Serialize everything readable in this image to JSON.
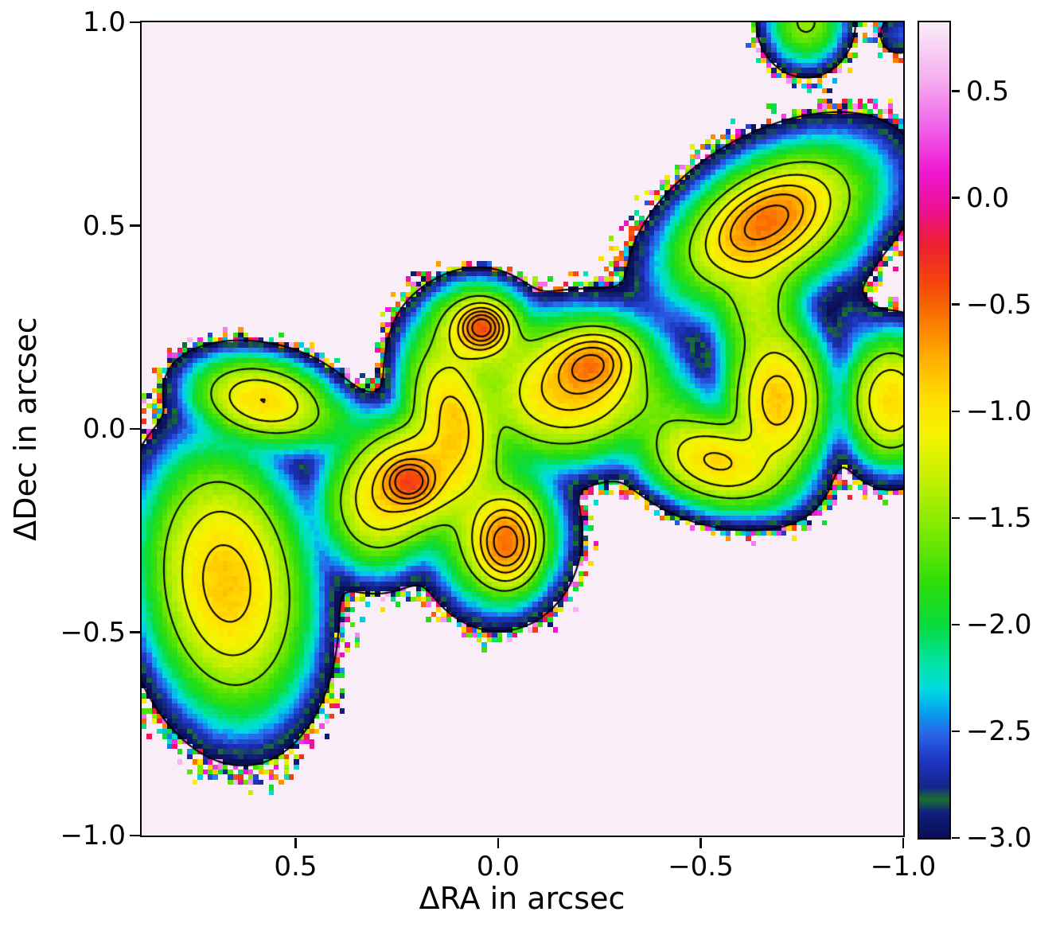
{
  "chart_data": {
    "type": "heatmap",
    "title": "",
    "xlabel": "ΔRA in arcsec",
    "ylabel": "ΔDec in arcsec",
    "x_range": [
      0.88,
      -1.0
    ],
    "y_range": [
      1.0,
      -1.0
    ],
    "grid": {
      "nx": 150,
      "ny": 160
    },
    "x_ticks": [
      {
        "value": 0.5,
        "label": "0.5"
      },
      {
        "value": 0.0,
        "label": "0.0"
      },
      {
        "value": -0.5,
        "label": "−0.5"
      },
      {
        "value": -1.0,
        "label": "−1.0"
      }
    ],
    "y_ticks": [
      {
        "value": 1.0,
        "label": "1.0"
      },
      {
        "value": 0.5,
        "label": "0.5"
      },
      {
        "value": 0.0,
        "label": "0.0"
      },
      {
        "value": -0.5,
        "label": "−0.5"
      },
      {
        "value": -1.0,
        "label": "−1.0"
      }
    ],
    "colorbar": {
      "vmin": -3.0,
      "vmax": 0.823,
      "ticks": [
        {
          "value": 0.5,
          "label": "0.5"
        },
        {
          "value": 0.0,
          "label": "0.0"
        },
        {
          "value": -0.5,
          "label": "−0.5"
        },
        {
          "value": -1.0,
          "label": "−1.0"
        },
        {
          "value": -1.5,
          "label": "−1.5"
        },
        {
          "value": -2.0,
          "label": "−2.0"
        },
        {
          "value": -2.5,
          "label": "−2.5"
        },
        {
          "value": -3.0,
          "label": "−3.0"
        }
      ]
    },
    "colormap_stops": [
      [
        -3.0,
        "#0a1056"
      ],
      [
        -2.94,
        "#0d1768"
      ],
      [
        -2.88,
        "#122180"
      ],
      [
        -2.82,
        "#1a7030"
      ],
      [
        -2.76,
        "#16268e"
      ],
      [
        -2.64,
        "#1d36c2"
      ],
      [
        -2.52,
        "#2b62e8"
      ],
      [
        -2.4,
        "#06a8f0"
      ],
      [
        -2.3,
        "#00dce0"
      ],
      [
        -2.16,
        "#00e49a"
      ],
      [
        -2.0,
        "#08dc3c"
      ],
      [
        -1.8,
        "#30de0a"
      ],
      [
        -1.56,
        "#7eea00"
      ],
      [
        -1.32,
        "#c4f000"
      ],
      [
        -1.1,
        "#f6f400"
      ],
      [
        -0.94,
        "#ffde00"
      ],
      [
        -0.76,
        "#ffb200"
      ],
      [
        -0.58,
        "#fb7c00"
      ],
      [
        -0.4,
        "#f6480c"
      ],
      [
        -0.22,
        "#ee2030"
      ],
      [
        -0.06,
        "#ec1090"
      ],
      [
        0.12,
        "#ee18d4"
      ],
      [
        0.34,
        "#f266ea"
      ],
      [
        0.56,
        "#f6b0f0"
      ],
      [
        0.823,
        "#f9eef8"
      ]
    ],
    "mask": {
      "threshold": -3.1,
      "background": "#f9eef8"
    },
    "noise": {
      "seed": 7,
      "texture_amp": 0.09,
      "speckle_bands": [
        [
          -3.4,
          0.8
        ],
        [
          -3.65,
          0.45
        ],
        [
          -3.98,
          0.15
        ]
      ],
      "speckle_value_range": [
        -3.0,
        0.6
      ]
    },
    "contour_levels": [
      -3.1,
      -1.55,
      -1.2,
      -0.95,
      -0.78,
      -0.63,
      -0.5
    ],
    "blobs": [
      {
        "ra": 0.67,
        "dec": -0.38,
        "amp": -0.85,
        "sx": 0.085,
        "sy": 0.14,
        "rot": -8
      },
      {
        "ra": 0.58,
        "dec": 0.07,
        "amp": -0.95,
        "sx": 0.078,
        "sy": 0.045,
        "rot": 12
      },
      {
        "ra": 0.42,
        "dec": 0.01,
        "amp": -2.1,
        "sx": 0.07,
        "sy": 0.04,
        "rot": 0
      },
      {
        "ra": 0.22,
        "dec": -0.13,
        "amp": -0.52,
        "sx": 0.03,
        "sy": 0.027,
        "rot": 0
      },
      {
        "ra": 0.21,
        "dec": -0.12,
        "amp": -0.8,
        "sx": 0.08,
        "sy": 0.065,
        "rot": -20
      },
      {
        "ra": 0.11,
        "dec": 0.03,
        "amp": -0.9,
        "sx": 0.05,
        "sy": 0.095,
        "rot": -15
      },
      {
        "ra": 0.3,
        "dec": -0.2,
        "amp": -1.25,
        "sx": 0.06,
        "sy": 0.07,
        "rot": 0
      },
      {
        "ra": 0.04,
        "dec": 0.25,
        "amp": -0.52,
        "sx": 0.028,
        "sy": 0.026,
        "rot": 0
      },
      {
        "ra": 0.05,
        "dec": 0.24,
        "amp": -0.95,
        "sx": 0.055,
        "sy": 0.05,
        "rot": 0
      },
      {
        "ra": -0.02,
        "dec": -0.28,
        "amp": -0.62,
        "sx": 0.038,
        "sy": 0.05,
        "rot": 0
      },
      {
        "ra": 0.0,
        "dec": -0.26,
        "amp": -1.2,
        "sx": 0.07,
        "sy": 0.08,
        "rot": 0
      },
      {
        "ra": -0.23,
        "dec": 0.16,
        "amp": -0.72,
        "sx": 0.05,
        "sy": 0.038,
        "rot": -15
      },
      {
        "ra": -0.18,
        "dec": 0.1,
        "amp": -0.85,
        "sx": 0.1,
        "sy": 0.075,
        "rot": -10
      },
      {
        "ra": -0.42,
        "dec": 0.04,
        "amp": -1.9,
        "sx": 0.06,
        "sy": 0.05,
        "rot": 0
      },
      {
        "ra": -0.54,
        "dec": -0.08,
        "amp": -0.92,
        "sx": 0.085,
        "sy": 0.05,
        "rot": 15
      },
      {
        "ra": -0.69,
        "dec": 0.07,
        "amp": -0.85,
        "sx": 0.055,
        "sy": 0.085,
        "rot": 0
      },
      {
        "ra": -0.64,
        "dec": 0.3,
        "amp": -1.45,
        "sx": 0.05,
        "sy": 0.08,
        "rot": 0
      },
      {
        "ra": -0.66,
        "dec": 0.51,
        "amp": -0.68,
        "sx": 0.085,
        "sy": 0.048,
        "rot": -30
      },
      {
        "ra": -0.68,
        "dec": 0.5,
        "amp": -1.1,
        "sx": 0.13,
        "sy": 0.075,
        "rot": -30
      },
      {
        "ra": -0.97,
        "dec": 0.07,
        "amp": -0.95,
        "sx": 0.05,
        "sy": 0.07,
        "rot": 0
      },
      {
        "ra": -0.76,
        "dec": 1.0,
        "amp": -1.5,
        "sx": 0.045,
        "sy": 0.05,
        "rot": 0
      },
      {
        "ra": -0.99,
        "dec": 0.97,
        "amp": -2.6,
        "sx": 0.03,
        "sy": 0.03,
        "rot": 0
      },
      {
        "ra": -0.88,
        "dec": 0.26,
        "amp": -2.75,
        "sx": 0.035,
        "sy": 0.05,
        "rot": 0
      },
      {
        "ra": -0.87,
        "dec": 0.44,
        "amp": -2.8,
        "sx": 0.03,
        "sy": 0.05,
        "rot": 0
      }
    ]
  }
}
